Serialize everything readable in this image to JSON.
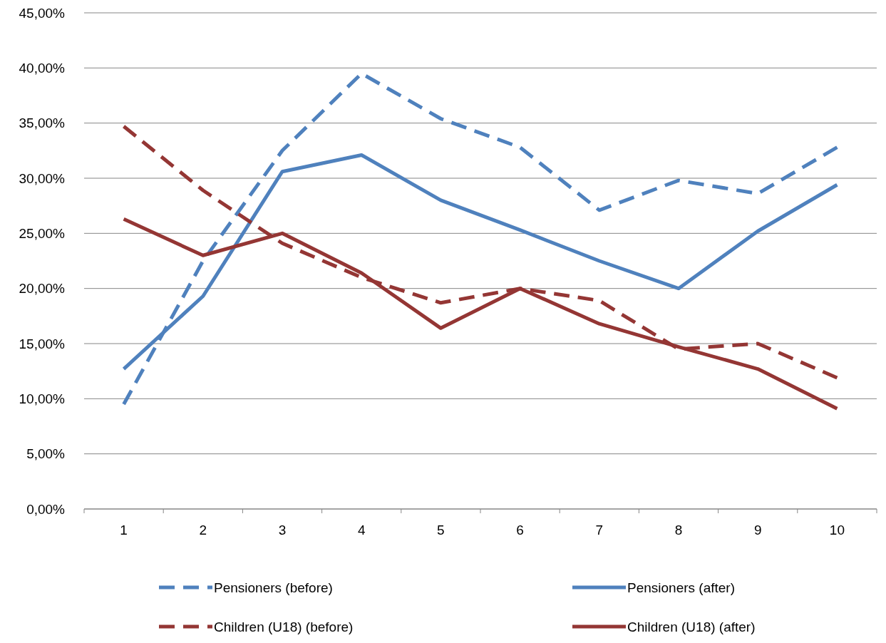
{
  "chart_data": {
    "type": "line",
    "categories": [
      "1",
      "2",
      "3",
      "4",
      "5",
      "6",
      "7",
      "8",
      "9",
      "10"
    ],
    "ylim": [
      0,
      45
    ],
    "yticks": [
      {
        "value": 0,
        "label": "0,00%"
      },
      {
        "value": 5,
        "label": "5,00%"
      },
      {
        "value": 10,
        "label": "10,00%"
      },
      {
        "value": 15,
        "label": "15,00%"
      },
      {
        "value": 20,
        "label": "20,00%"
      },
      {
        "value": 25,
        "label": "25,00%"
      },
      {
        "value": 30,
        "label": "30,00%"
      },
      {
        "value": 35,
        "label": "35,00%"
      },
      {
        "value": 40,
        "label": "40,00%"
      },
      {
        "value": 45,
        "label": "45,00%"
      }
    ],
    "grid": "y",
    "legend": "bottom",
    "series": [
      {
        "name": "Pensioners (before)",
        "color": "#4f81bd",
        "line_style": "dashed",
        "values": [
          9.5,
          22.5,
          32.5,
          39.5,
          35.4,
          32.8,
          27.1,
          29.8,
          28.6,
          32.8
        ]
      },
      {
        "name": "Pensioners (after)",
        "color": "#4f81bd",
        "line_style": "solid",
        "values": [
          12.7,
          19.3,
          30.6,
          32.1,
          28.0,
          25.3,
          22.5,
          20.0,
          25.2,
          29.4
        ]
      },
      {
        "name": "Children (U18) (before)",
        "color": "#943634",
        "line_style": "dashed",
        "values": [
          34.7,
          28.9,
          24.1,
          21.0,
          18.7,
          20.0,
          18.9,
          14.5,
          15.0,
          11.9
        ]
      },
      {
        "name": "Children (U18) (after)",
        "color": "#943634",
        "line_style": "solid",
        "values": [
          26.3,
          23.0,
          25.0,
          21.4,
          16.4,
          20.0,
          16.8,
          14.7,
          12.7,
          9.1
        ]
      }
    ]
  }
}
